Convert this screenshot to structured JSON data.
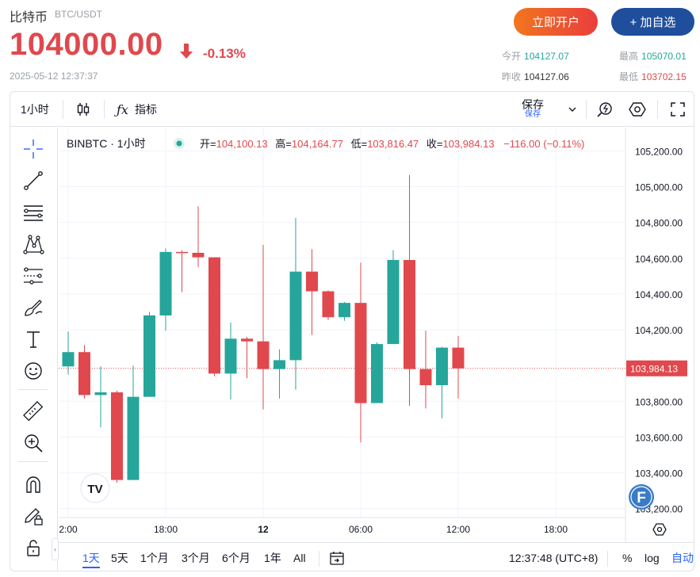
{
  "quote": {
    "name": "比特币",
    "pair": "BTC/USDT",
    "price": "104000.00",
    "change": "-0.13%",
    "timestamp": "2025-05-12 12:37:37",
    "open_account_label": "立即开户",
    "add_watch_label": "+ 加自选",
    "stats": {
      "open_label": "今开",
      "open_value": "104127.07",
      "high_label": "最高",
      "high_value": "105070.01",
      "prev_close_label": "昨收",
      "prev_close_value": "104127.06",
      "low_label": "最低",
      "low_value": "103702.15"
    }
  },
  "toolbar": {
    "interval": "1小时",
    "indicators_label": "指标",
    "save_label": "保存",
    "save_sub_label": "保存"
  },
  "legend": {
    "symbol": "BINBTC · 1小时",
    "open_label": "开=",
    "open_value": "104,100.13",
    "high_label": "高=",
    "high_value": "104,164.77",
    "low_label": "低=",
    "low_value": "103,816.47",
    "close_label": "收=",
    "close_value": "103,984.13",
    "change": "−116.00 (−0.11%)"
  },
  "bottom": {
    "ranges": [
      "1天",
      "5天",
      "1个月",
      "3个月",
      "6个月",
      "1年",
      "All"
    ],
    "active_range": "1天",
    "clock": "12:37:48 (UTC+8)",
    "percent_label": "%",
    "log_label": "log",
    "auto_label": "自动"
  },
  "badge": {
    "logo_text": "TV",
    "f_text": "F"
  },
  "colors": {
    "up": "#26a69a",
    "down": "#e0484d",
    "accent": "#2962ff"
  },
  "chart_data": {
    "type": "candlestick",
    "price_axis": {
      "ticks": [
        "105,200.00",
        "105,000.00",
        "104,800.00",
        "104,600.00",
        "104,400.00",
        "104,200.00",
        "103,800.00",
        "103,600.00",
        "103,400.00",
        "103,200.00"
      ],
      "tick_values": [
        105200,
        105000,
        104800,
        104600,
        104400,
        104200,
        103800,
        103600,
        103400,
        103200
      ],
      "range": [
        103150,
        105330
      ],
      "last_price_label": "103,984.13",
      "last_price": 103984.13
    },
    "time_axis": {
      "labels": [
        "2:00",
        "18:00",
        "12",
        "06:00",
        "12:00",
        "18:00"
      ],
      "label_bars": [
        0,
        6,
        12,
        18,
        24,
        30
      ],
      "bold_label": "12"
    },
    "candles": [
      {
        "o": 103995,
        "h": 104190,
        "l": 103950,
        "c": 104075
      },
      {
        "o": 104075,
        "h": 104115,
        "l": 103815,
        "c": 103835
      },
      {
        "o": 103835,
        "h": 103995,
        "l": 103655,
        "c": 103850
      },
      {
        "o": 103850,
        "h": 103860,
        "l": 103345,
        "c": 103360
      },
      {
        "o": 103360,
        "h": 104000,
        "l": 103360,
        "c": 103825
      },
      {
        "o": 103825,
        "h": 104300,
        "l": 103825,
        "c": 104280
      },
      {
        "o": 104280,
        "h": 104655,
        "l": 104195,
        "c": 104635
      },
      {
        "o": 104635,
        "h": 104645,
        "l": 104410,
        "c": 104630
      },
      {
        "o": 104630,
        "h": 104890,
        "l": 104550,
        "c": 104605
      },
      {
        "o": 104605,
        "h": 104600,
        "l": 103940,
        "c": 103955
      },
      {
        "o": 103955,
        "h": 104240,
        "l": 103810,
        "c": 104150
      },
      {
        "o": 104150,
        "h": 104160,
        "l": 103930,
        "c": 104135
      },
      {
        "o": 104135,
        "h": 104675,
        "l": 103755,
        "c": 103980
      },
      {
        "o": 103980,
        "h": 104090,
        "l": 103815,
        "c": 104030
      },
      {
        "o": 104030,
        "h": 104825,
        "l": 103865,
        "c": 104525
      },
      {
        "o": 104525,
        "h": 104650,
        "l": 104170,
        "c": 104415
      },
      {
        "o": 104415,
        "h": 104420,
        "l": 104255,
        "c": 104270
      },
      {
        "o": 104270,
        "h": 104355,
        "l": 104250,
        "c": 104350
      },
      {
        "o": 104350,
        "h": 104575,
        "l": 103570,
        "c": 103790
      },
      {
        "o": 103790,
        "h": 104130,
        "l": 103790,
        "c": 104120
      },
      {
        "o": 104120,
        "h": 104645,
        "l": 104120,
        "c": 104590
      },
      {
        "o": 104590,
        "h": 105065,
        "l": 103775,
        "c": 103980
      },
      {
        "o": 103980,
        "h": 104195,
        "l": 103760,
        "c": 103890
      },
      {
        "o": 103890,
        "h": 104105,
        "l": 103705,
        "c": 104100
      },
      {
        "o": 104100,
        "h": 104165,
        "l": 103816,
        "c": 103984
      }
    ]
  }
}
